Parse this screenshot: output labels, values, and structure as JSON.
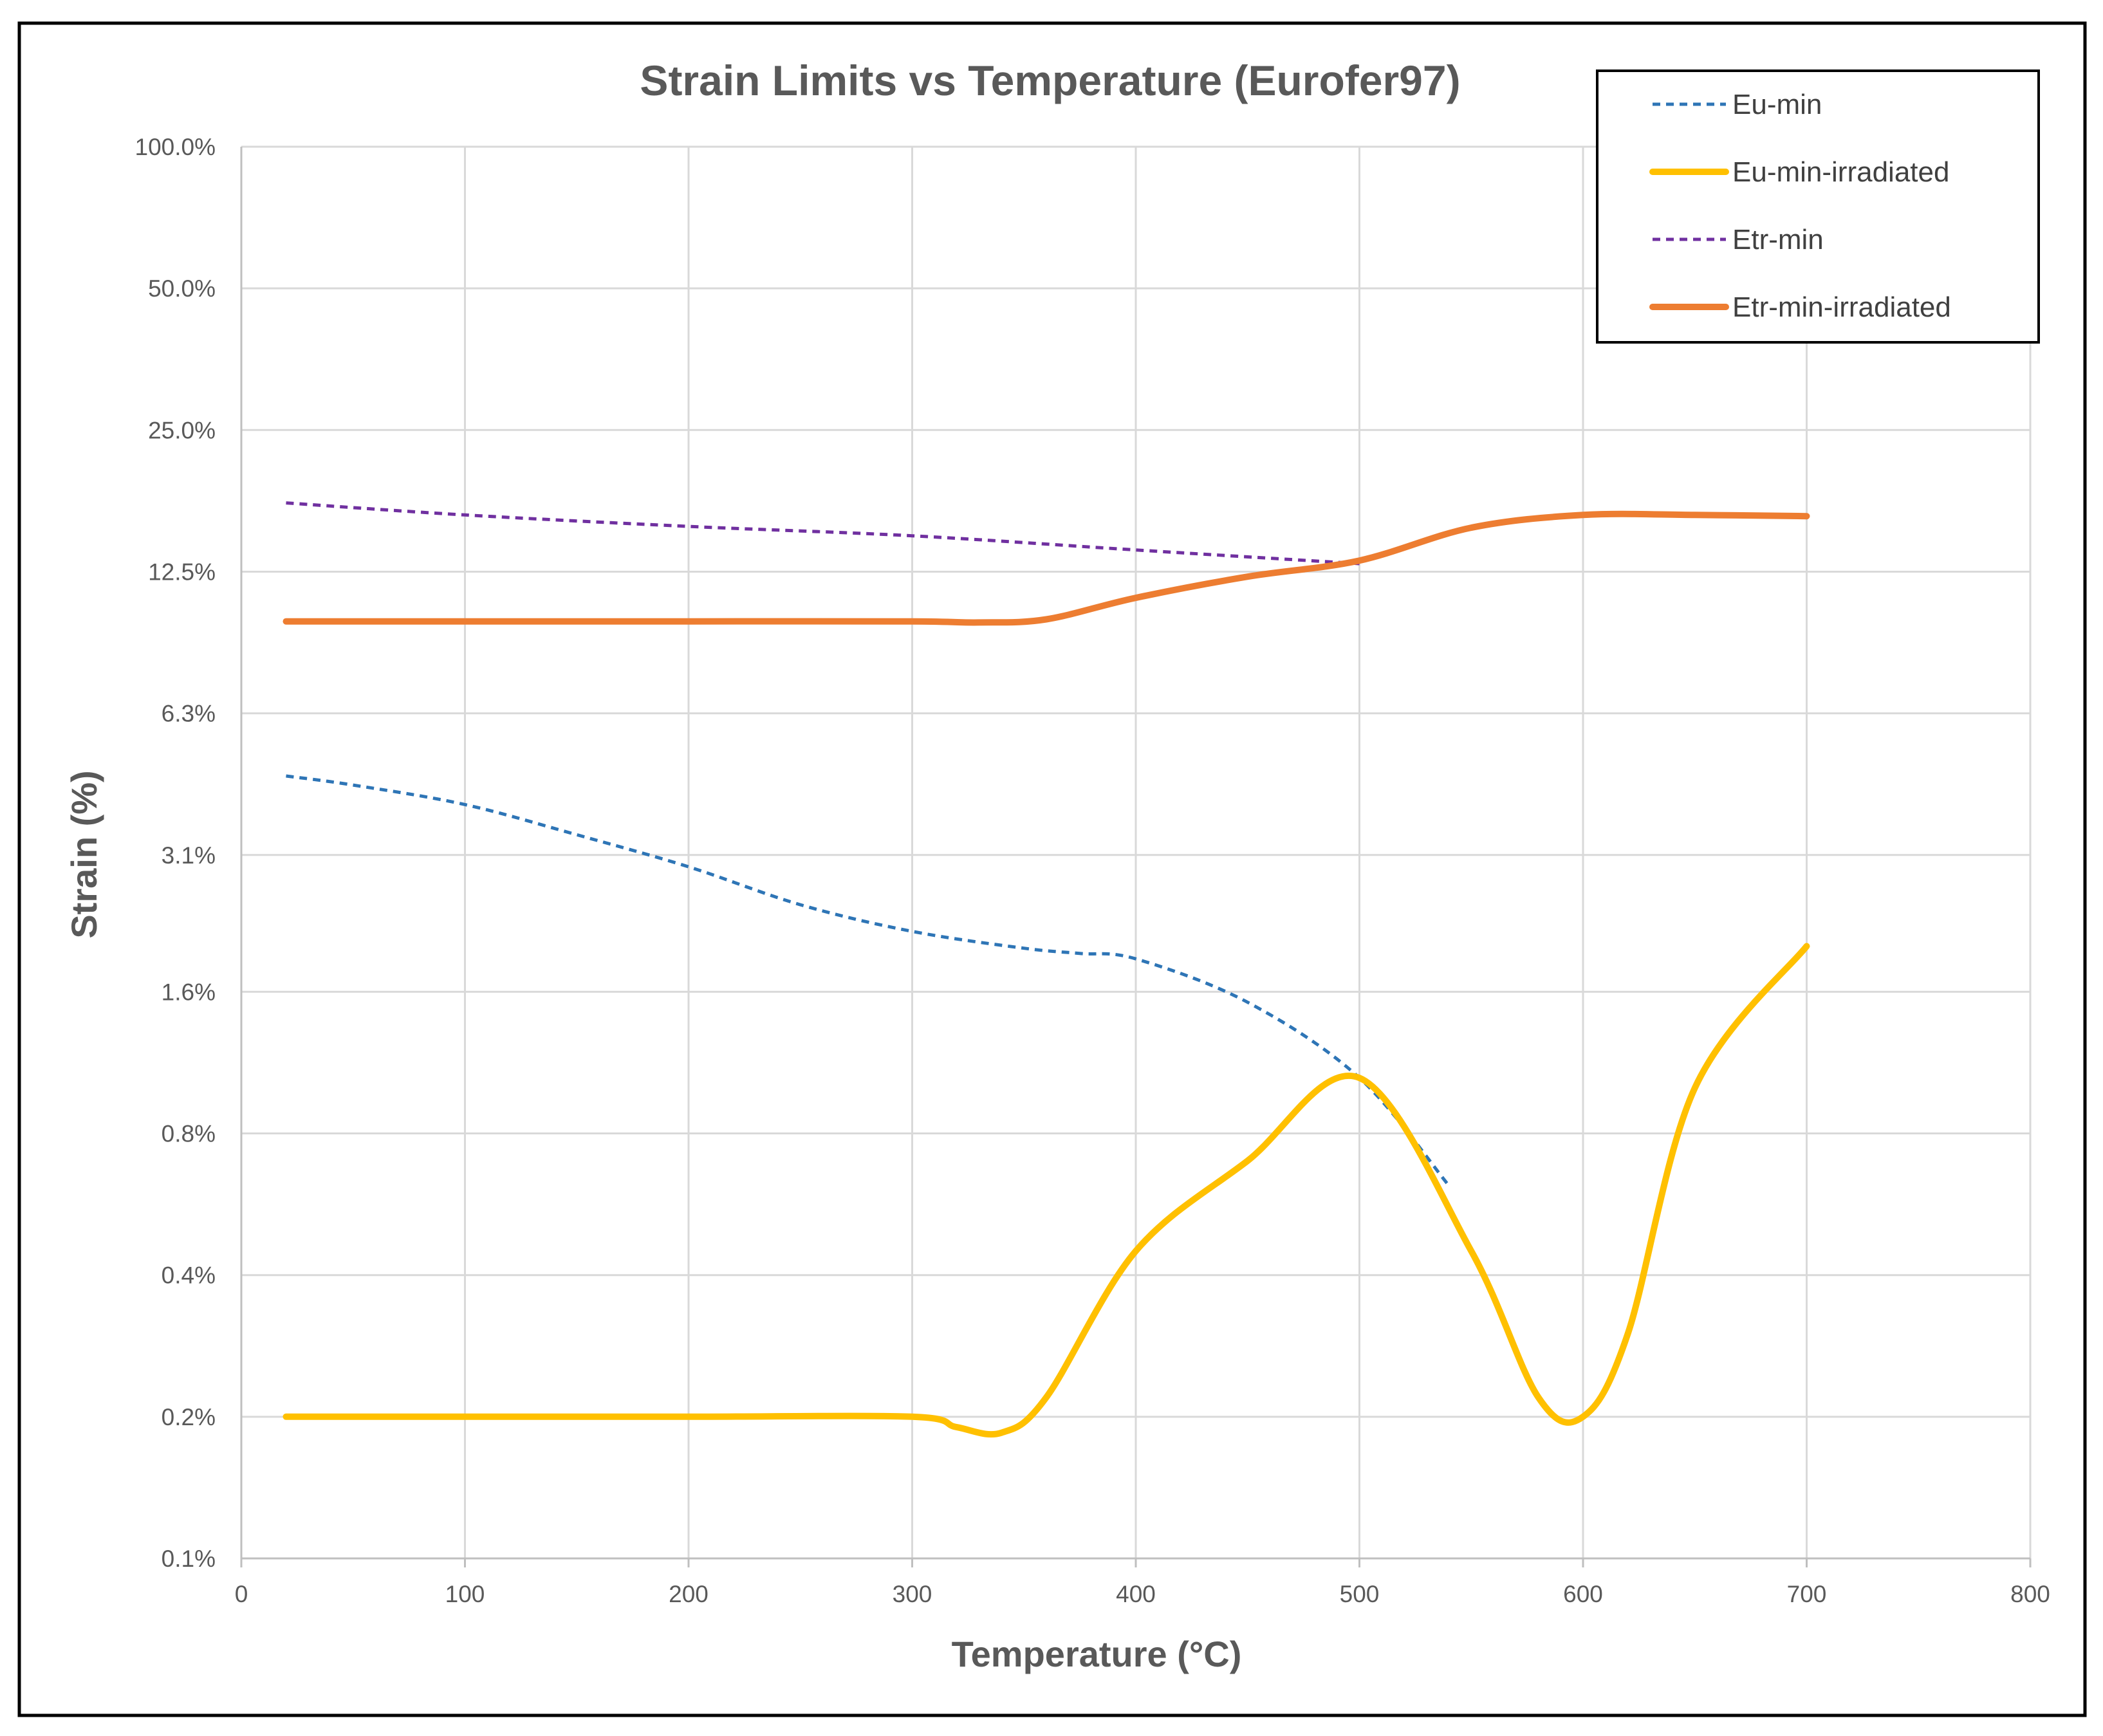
{
  "chart_data": {
    "type": "line",
    "title": "Strain Limits vs Temperature (Eurofer97)",
    "xlabel": "Temperature (°C)",
    "ylabel": "Strain (%)",
    "xlim": [
      0,
      800
    ],
    "x_ticks": [
      0,
      100,
      200,
      300,
      400,
      500,
      600,
      700,
      800
    ],
    "x_tick_labels": [
      "0",
      "100",
      "200",
      "300",
      "400",
      "500",
      "600",
      "700",
      "800"
    ],
    "y_scale": "log2",
    "ylim": [
      0.1,
      100
    ],
    "y_ticks": [
      0.1,
      0.2,
      0.4,
      0.8,
      1.6,
      3.125,
      6.25,
      12.5,
      25,
      50,
      100
    ],
    "y_tick_labels": [
      "0.1%",
      "0.2%",
      "0.4%",
      "0.8%",
      "1.6%",
      "3.1%",
      "6.3%",
      "12.5%",
      "25.0%",
      "50.0%",
      "100.0%"
    ],
    "grid": true,
    "legend_position": "top-right",
    "series": [
      {
        "name": "Eu-min",
        "color": "#2E75B6",
        "style": "dashed",
        "x": [
          20,
          50,
          100,
          150,
          200,
          250,
          300,
          350,
          375,
          400,
          450,
          500,
          540
        ],
        "y": [
          4.6,
          4.4,
          4.0,
          3.45,
          2.95,
          2.45,
          2.15,
          1.98,
          1.93,
          1.88,
          1.52,
          1.05,
          0.62
        ]
      },
      {
        "name": "Eu-min-irradiated",
        "color": "#FFC000",
        "style": "solid",
        "x": [
          20,
          100,
          200,
          300,
          320,
          340,
          360,
          400,
          450,
          500,
          550,
          580,
          600,
          620,
          650,
          700
        ],
        "y": [
          0.2,
          0.2,
          0.2,
          0.2,
          0.19,
          0.185,
          0.22,
          0.45,
          0.7,
          1.05,
          0.45,
          0.22,
          0.2,
          0.3,
          1.0,
          2.0
        ]
      },
      {
        "name": "Etr-min",
        "color": "#7030A0",
        "style": "dashed",
        "x": [
          20,
          100,
          200,
          300,
          400,
          500
        ],
        "y": [
          17.5,
          16.5,
          15.6,
          14.9,
          13.9,
          13.0
        ]
      },
      {
        "name": "Etr-min-irradiated",
        "color": "#ED7D31",
        "style": "solid",
        "x": [
          20,
          100,
          200,
          300,
          330,
          360,
          400,
          450,
          500,
          550,
          600,
          650,
          700
        ],
        "y": [
          9.8,
          9.8,
          9.8,
          9.8,
          9.75,
          9.9,
          11.0,
          12.2,
          13.2,
          15.5,
          16.5,
          16.5,
          16.4
        ]
      }
    ]
  }
}
